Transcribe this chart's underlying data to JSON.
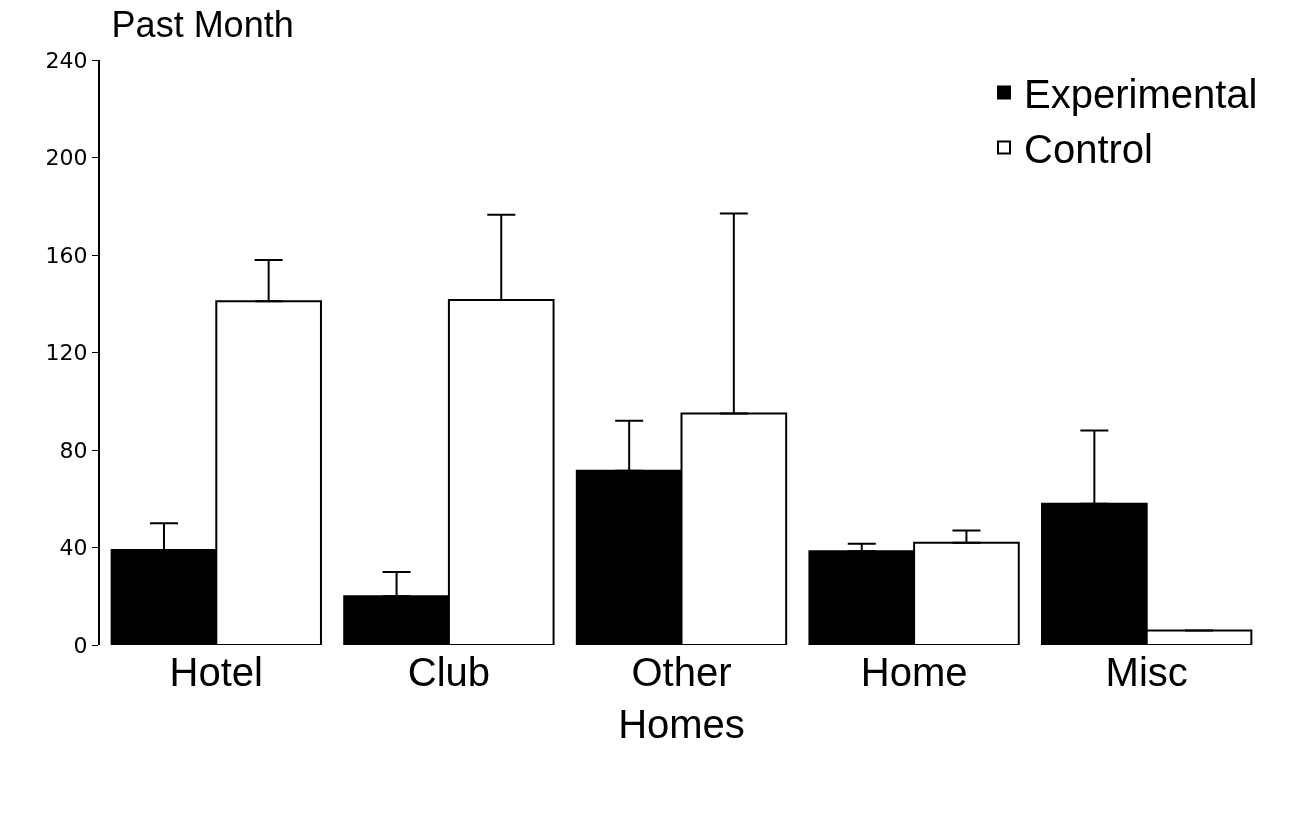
{
  "chart_data": {
    "type": "bar",
    "title": "Past Month",
    "categories": [
      "Hotel",
      "Club",
      "Other Homes",
      "Home",
      "Misc"
    ],
    "series": [
      {
        "name": "Experimental",
        "color": "#000000",
        "values": [
          39,
          20,
          71.5,
          38.5,
          58
        ],
        "errors": [
          [
            39,
            50
          ],
          [
            20,
            30
          ],
          [
            71.5,
            92
          ],
          [
            38.5,
            41.5
          ],
          [
            58,
            88
          ]
        ]
      },
      {
        "name": "Control",
        "color": "#ffffff",
        "values": [
          141,
          141.5,
          95,
          42,
          6
        ],
        "errors": [
          [
            141,
            158
          ],
          [
            141.5,
            176.5
          ],
          [
            95,
            177
          ],
          [
            42,
            47
          ],
          null
        ]
      }
    ],
    "ylim": [
      0,
      240
    ],
    "yticks": [
      0,
      40,
      80,
      120,
      160,
      200,
      240
    ],
    "grid": false,
    "legend": "top right"
  }
}
